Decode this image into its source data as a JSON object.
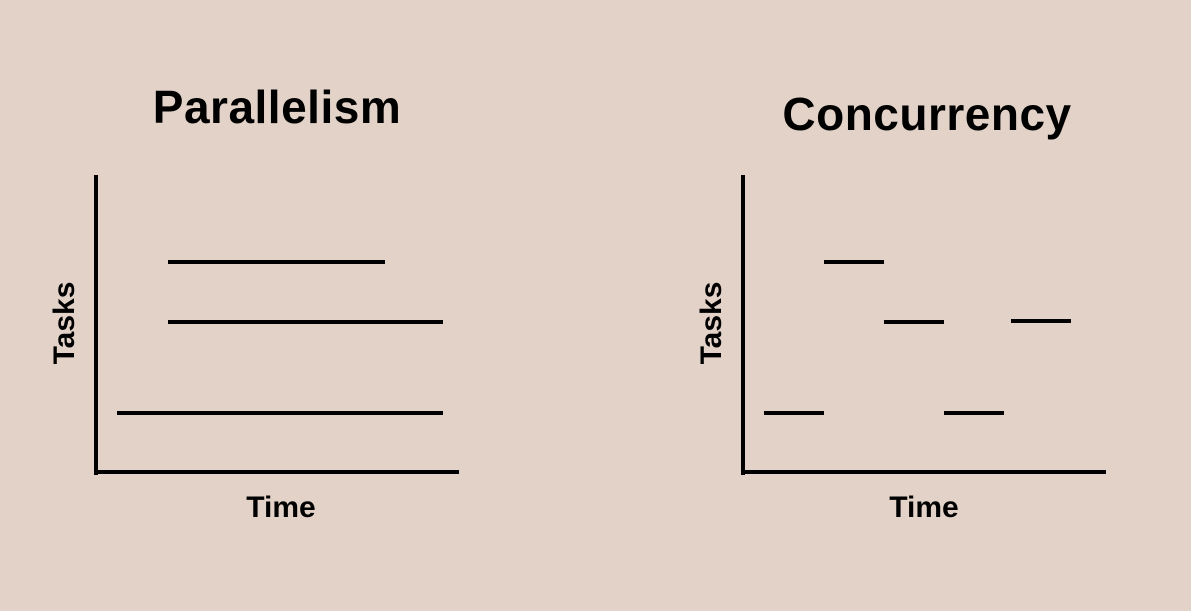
{
  "diagrams": [
    {
      "title": "Parallelism",
      "xlabel": "Time",
      "ylabel": "Tasks"
    },
    {
      "title": "Concurrency",
      "xlabel": "Time",
      "ylabel": "Tasks"
    }
  ]
}
